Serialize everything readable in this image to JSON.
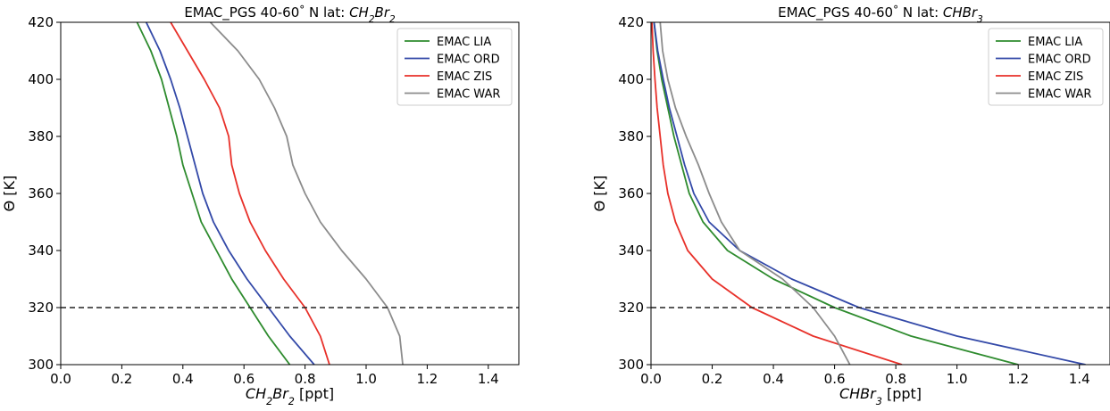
{
  "chart_data": [
    {
      "type": "line",
      "title": {
        "prefix": "EMAC_PGS 40-60",
        "deg": "°",
        "mid": " N lat: ",
        "species": [
          "CH",
          "2",
          "Br",
          "2"
        ]
      },
      "xlabel": {
        "species": [
          "CH",
          "2",
          "Br",
          "2"
        ],
        "unit": " [ppt]"
      },
      "ylabel": "Θ [K]",
      "xlim": [
        0.0,
        1.5
      ],
      "ylim": [
        300,
        420
      ],
      "xticks": [
        "0.0",
        "0.2",
        "0.4",
        "0.6",
        "0.8",
        "1.0",
        "1.2",
        "1.4"
      ],
      "yticks": [
        "300",
        "320",
        "340",
        "360",
        "380",
        "400",
        "420"
      ],
      "grid": false,
      "legend": "top-right",
      "hline": {
        "y": 320,
        "style": "dashed",
        "color": "#222222"
      },
      "series": [
        {
          "name": "EMAC LIA",
          "color": "#2e8b2e",
          "x": [
            0.75,
            0.68,
            0.62,
            0.56,
            0.51,
            0.46,
            0.43,
            0.4,
            0.38,
            0.355,
            0.33,
            0.295,
            0.25
          ],
          "y": [
            300,
            310,
            320,
            330,
            340,
            350,
            360,
            370,
            380,
            390,
            400,
            410,
            420
          ]
        },
        {
          "name": "EMAC ORD",
          "color": "#3349a8",
          "x": [
            0.83,
            0.75,
            0.68,
            0.61,
            0.55,
            0.5,
            0.465,
            0.44,
            0.415,
            0.39,
            0.36,
            0.325,
            0.28
          ],
          "y": [
            300,
            310,
            320,
            330,
            340,
            350,
            360,
            370,
            380,
            390,
            400,
            410,
            420
          ]
        },
        {
          "name": "EMAC ZIS",
          "color": "#e8312a",
          "x": [
            0.88,
            0.85,
            0.8,
            0.73,
            0.67,
            0.62,
            0.585,
            0.56,
            0.55,
            0.52,
            0.47,
            0.415,
            0.36
          ],
          "y": [
            300,
            310,
            320,
            330,
            340,
            350,
            360,
            370,
            380,
            390,
            400,
            410,
            420
          ]
        },
        {
          "name": "EMAC WAR",
          "color": "#8c8c8c",
          "x": [
            1.12,
            1.11,
            1.07,
            1.0,
            0.92,
            0.85,
            0.8,
            0.76,
            0.74,
            0.7,
            0.65,
            0.58,
            0.49
          ],
          "y": [
            300,
            310,
            320,
            330,
            340,
            350,
            360,
            370,
            380,
            390,
            400,
            410,
            420
          ]
        }
      ]
    },
    {
      "type": "line",
      "title": {
        "prefix": "EMAC_PGS 40-60",
        "deg": "°",
        "mid": " N lat: ",
        "species": [
          "CHBr",
          "3"
        ]
      },
      "xlabel": {
        "species": [
          "CHBr",
          "3"
        ],
        "unit": " [ppt]"
      },
      "ylabel": "Θ [K]",
      "xlim": [
        0.0,
        1.5
      ],
      "ylim": [
        300,
        420
      ],
      "xticks": [
        "0.0",
        "0.2",
        "0.4",
        "0.6",
        "0.8",
        "1.0",
        "1.2",
        "1.4"
      ],
      "yticks": [
        "300",
        "320",
        "340",
        "360",
        "380",
        "400",
        "420"
      ],
      "grid": false,
      "legend": "top-right",
      "hline": {
        "y": 320,
        "style": "dashed",
        "color": "#222222"
      },
      "series": [
        {
          "name": "EMAC LIA",
          "color": "#2e8b2e",
          "x": [
            1.2,
            0.85,
            0.6,
            0.4,
            0.25,
            0.17,
            0.125,
            0.1,
            0.075,
            0.055,
            0.035,
            0.02,
            0.01
          ],
          "y": [
            300,
            310,
            320,
            330,
            340,
            350,
            360,
            370,
            380,
            390,
            400,
            410,
            420
          ]
        },
        {
          "name": "EMAC ORD",
          "color": "#3349a8",
          "x": [
            1.42,
            1.0,
            0.68,
            0.46,
            0.29,
            0.19,
            0.14,
            0.11,
            0.085,
            0.06,
            0.04,
            0.022,
            0.01
          ],
          "y": [
            300,
            310,
            320,
            330,
            340,
            350,
            360,
            370,
            380,
            390,
            400,
            410,
            420
          ]
        },
        {
          "name": "EMAC ZIS",
          "color": "#e8312a",
          "x": [
            0.82,
            0.53,
            0.33,
            0.2,
            0.12,
            0.08,
            0.055,
            0.04,
            0.03,
            0.02,
            0.013,
            0.007,
            0.003
          ],
          "y": [
            300,
            310,
            320,
            330,
            340,
            350,
            360,
            370,
            380,
            390,
            400,
            410,
            420
          ]
        },
        {
          "name": "EMAC WAR",
          "color": "#8c8c8c",
          "x": [
            0.65,
            0.6,
            0.53,
            0.43,
            0.29,
            0.23,
            0.19,
            0.155,
            0.115,
            0.08,
            0.055,
            0.038,
            0.03
          ],
          "y": [
            300,
            310,
            320,
            330,
            340,
            350,
            360,
            370,
            380,
            390,
            400,
            410,
            420
          ]
        }
      ]
    }
  ]
}
